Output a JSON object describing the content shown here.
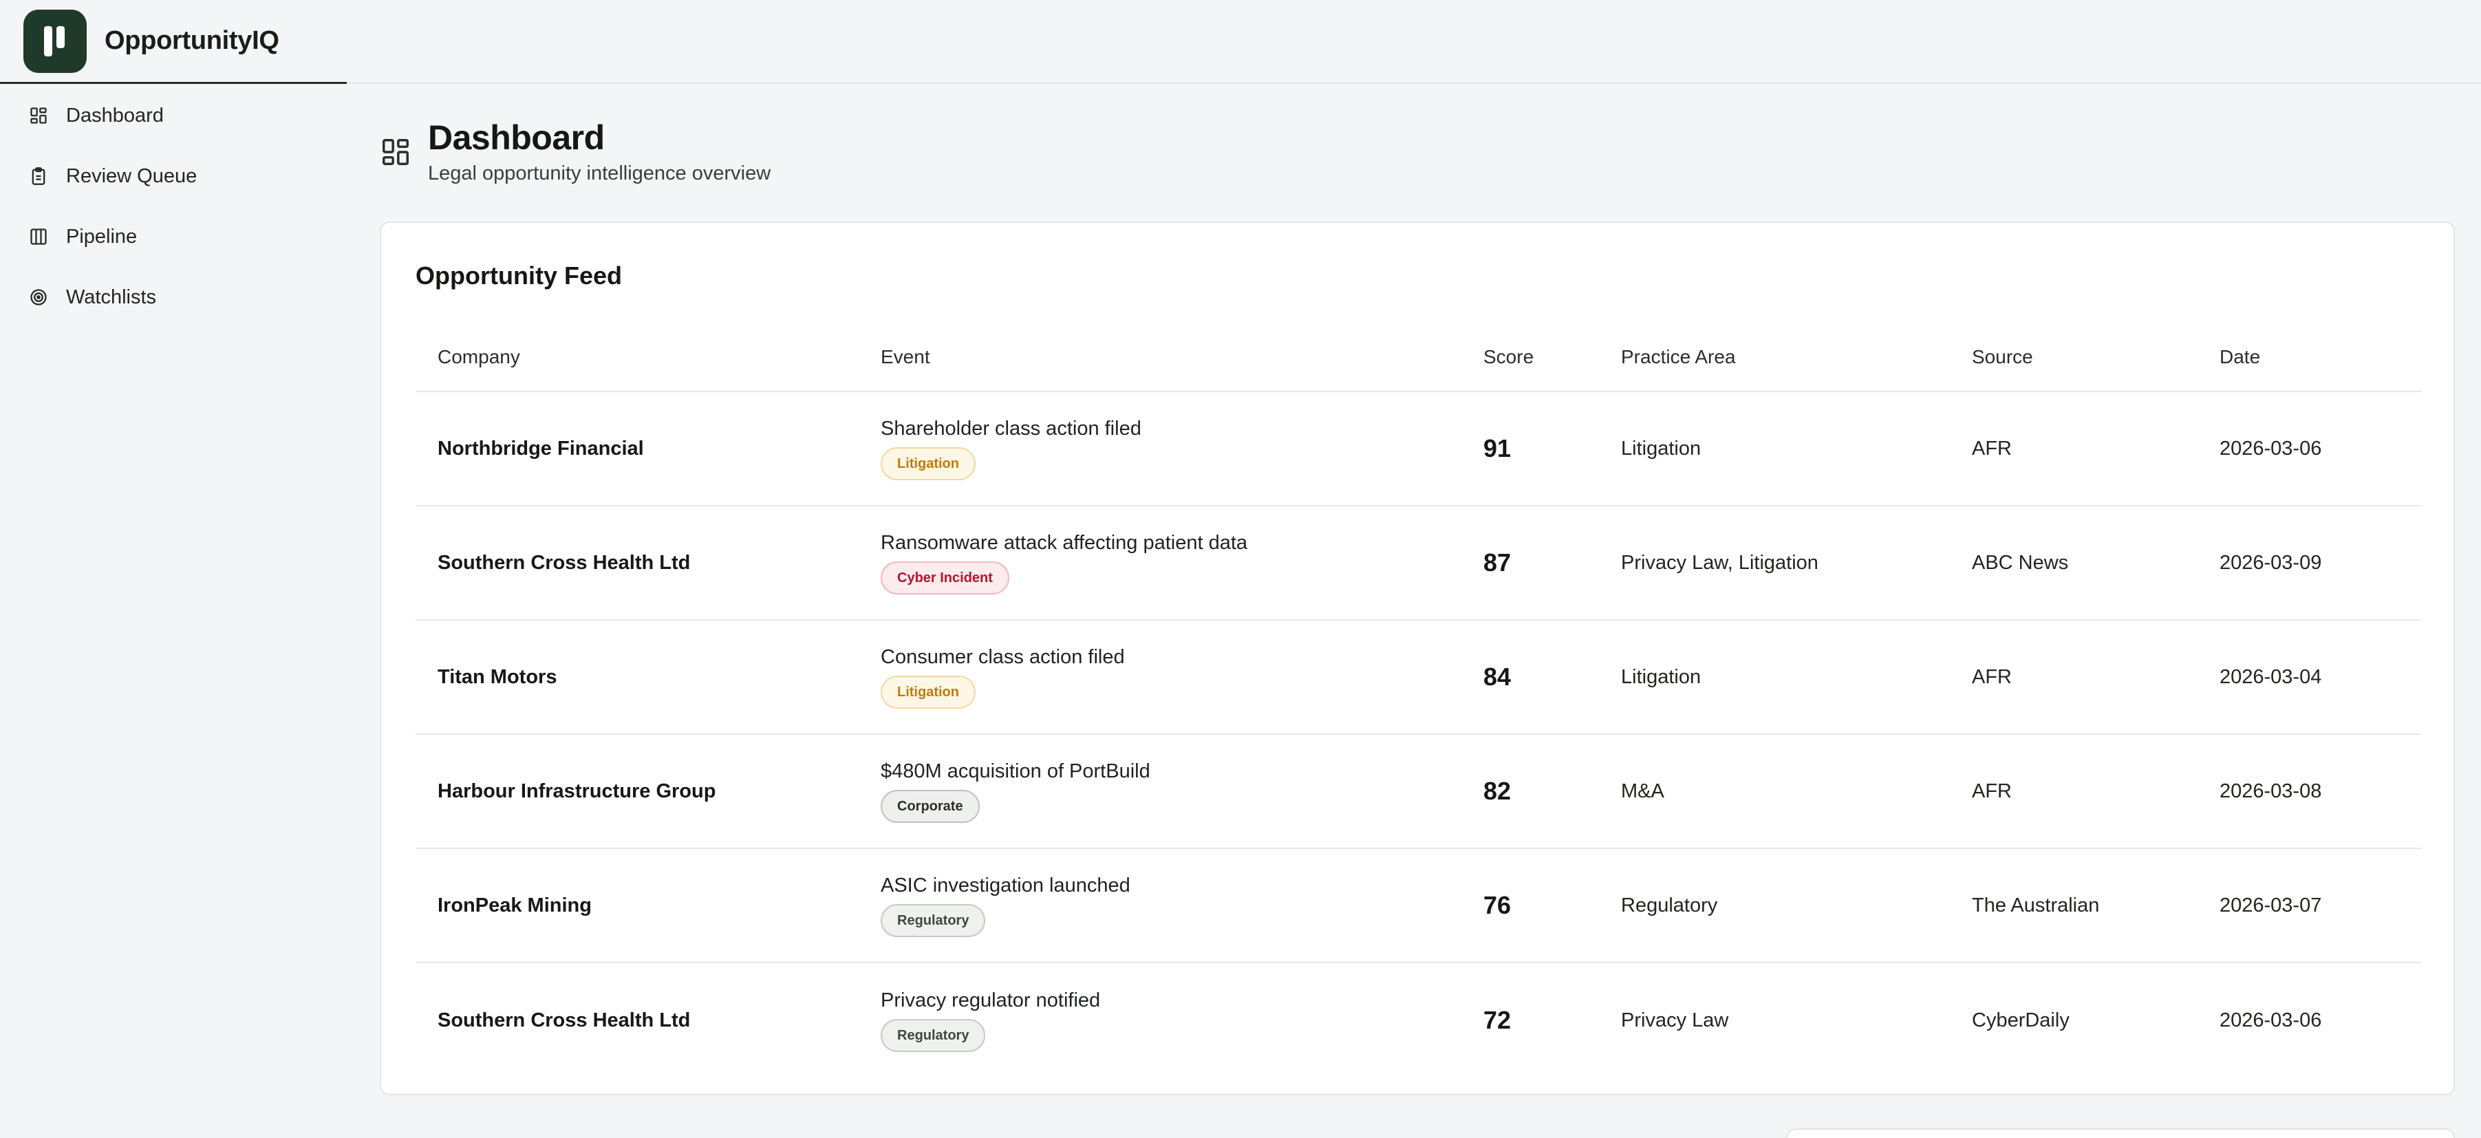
{
  "app": {
    "name": "OpportunityIQ"
  },
  "sidebar": {
    "items": [
      {
        "label": "Dashboard",
        "icon": "dashboard-icon"
      },
      {
        "label": "Review Queue",
        "icon": "clipboard-icon"
      },
      {
        "label": "Pipeline",
        "icon": "columns-icon"
      },
      {
        "label": "Watchlists",
        "icon": "target-icon"
      }
    ]
  },
  "header": {
    "title": "Dashboard",
    "subtitle": "Legal opportunity intelligence overview"
  },
  "feed": {
    "title": "Opportunity Feed",
    "columns": [
      "Company",
      "Event",
      "Score",
      "Practice Area",
      "Source",
      "Date"
    ],
    "rows": [
      {
        "company": "Northbridge Financial",
        "event": "Shareholder class action filed",
        "tag": "Litigation",
        "tag_type": "litigation",
        "score": "91",
        "area": "Litigation",
        "source": "AFR",
        "date": "2026-03-06"
      },
      {
        "company": "Southern Cross Health Ltd",
        "event": "Ransomware attack affecting patient data",
        "tag": "Cyber Incident",
        "tag_type": "cyber",
        "score": "87",
        "area": "Privacy Law, Litigation",
        "source": "ABC News",
        "date": "2026-03-09"
      },
      {
        "company": "Titan Motors",
        "event": "Consumer class action filed",
        "tag": "Litigation",
        "tag_type": "litigation",
        "score": "84",
        "area": "Litigation",
        "source": "AFR",
        "date": "2026-03-04"
      },
      {
        "company": "Harbour Infrastructure Group",
        "event": "$480M acquisition of PortBuild",
        "tag": "Corporate",
        "tag_type": "corporate",
        "score": "82",
        "area": "M&A",
        "source": "AFR",
        "date": "2026-03-08"
      },
      {
        "company": "IronPeak Mining",
        "event": "ASIC investigation launched",
        "tag": "Regulatory",
        "tag_type": "regulatory",
        "score": "76",
        "area": "Regulatory",
        "source": "The Australian",
        "date": "2026-03-07"
      },
      {
        "company": "Southern Cross Health Ltd",
        "event": "Privacy regulator notified",
        "tag": "Regulatory",
        "tag_type": "regulatory",
        "score": "72",
        "area": "Privacy Law",
        "source": "CyberDaily",
        "date": "2026-03-06"
      }
    ]
  },
  "colors": {
    "brand": "#1f3a2a",
    "litigation": "#c27a06",
    "cyber": "#b4162c"
  }
}
